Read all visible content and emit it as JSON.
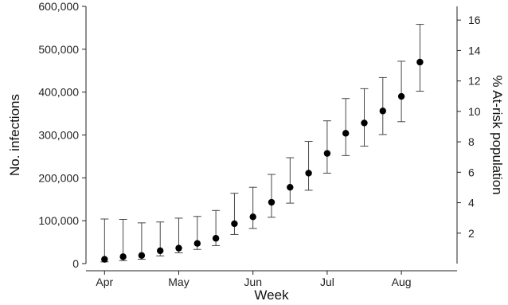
{
  "chart_data": {
    "type": "scatter",
    "title": "",
    "xlabel": "Week",
    "ylabel": "No. infections",
    "y2label": "% At-risk population",
    "ylim": [
      0,
      600000
    ],
    "y2lim": [
      0,
      16.9
    ],
    "yticks": [
      0,
      100000,
      200000,
      300000,
      400000,
      500000,
      600000
    ],
    "ytick_labels": [
      "0",
      "100,000",
      "200,000",
      "300,000",
      "400,000",
      "500,000",
      "600,000"
    ],
    "y2ticks": [
      2,
      4,
      6,
      8,
      10,
      12,
      14,
      16
    ],
    "y2tick_labels": [
      "2",
      "4",
      "6",
      "8",
      "10",
      "12",
      "14",
      "16"
    ],
    "xlim": [
      0,
      20
    ],
    "xticks": [
      1,
      5,
      9,
      13,
      17
    ],
    "xtick_labels": [
      "Apr",
      "May",
      "Jun",
      "Jul",
      "Aug"
    ],
    "grid": false,
    "legend": "none",
    "series": [
      {
        "x": [
          1,
          2,
          3,
          4,
          5,
          6,
          7,
          8,
          9,
          10,
          11,
          12,
          13,
          14,
          15,
          16,
          17,
          18
        ],
        "values": [
          10000,
          16000,
          19000,
          30000,
          36000,
          47000,
          59000,
          93000,
          109000,
          143000,
          178000,
          211000,
          257000,
          304000,
          328000,
          356000,
          390000,
          470000
        ],
        "lower": [
          4000,
          7000,
          10000,
          18000,
          25000,
          33000,
          42000,
          68000,
          82000,
          108000,
          141000,
          171000,
          211000,
          252000,
          274000,
          301000,
          331000,
          402000
        ],
        "upper": [
          104000,
          103000,
          95000,
          97000,
          106000,
          110000,
          124000,
          164000,
          178000,
          208000,
          247000,
          285000,
          333000,
          385000,
          408000,
          434000,
          472000,
          558000
        ]
      }
    ],
    "marker_color": "#000000"
  }
}
